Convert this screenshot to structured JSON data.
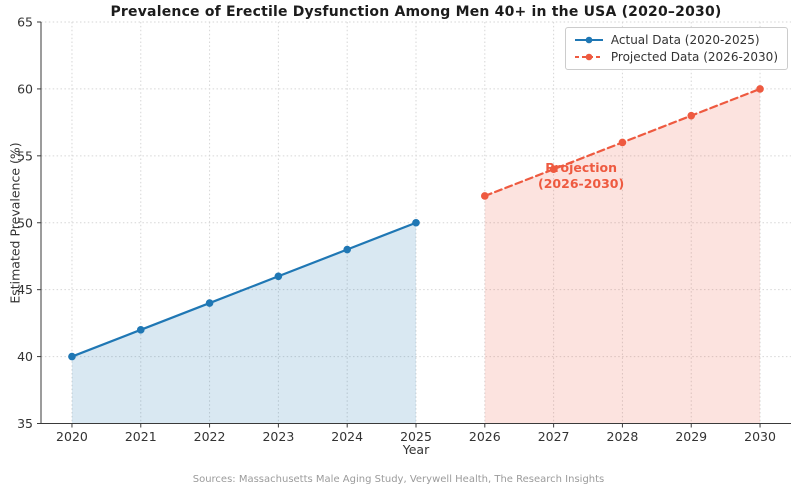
{
  "title": "Prevalence of Erectile Dysfunction Among Men 40+ in the USA (2020–2030)",
  "footer": "Sources: Massachusetts Male Aging Study, Verywell Health, The Research Insights",
  "chart_data": {
    "type": "line",
    "title": "Prevalence of Erectile Dysfunction Among Men 40+ in the USA (2020–2030)",
    "xlabel": "Year",
    "ylabel": "Estimated Prevalence (%)",
    "xlim": [
      2019.55,
      2030.45
    ],
    "ylim": [
      35,
      65
    ],
    "xticks": [
      2020,
      2021,
      2022,
      2023,
      2024,
      2025,
      2026,
      2027,
      2028,
      2029,
      2030
    ],
    "yticks": [
      35,
      40,
      45,
      50,
      55,
      60,
      65
    ],
    "grid": true,
    "legend_position": "top-right",
    "series": [
      {
        "name": "Actual Data (2020-2025)",
        "x": [
          2020,
          2021,
          2022,
          2023,
          2024,
          2025
        ],
        "values": [
          40,
          42,
          44,
          46,
          48,
          50
        ],
        "color": "#1f77b4",
        "fill": "rgba(31,119,180,0.17)",
        "line_style": "solid",
        "marker": "circle"
      },
      {
        "name": "Projected Data (2026-2030)",
        "x": [
          2026,
          2027,
          2028,
          2029,
          2030
        ],
        "values": [
          52,
          54,
          56,
          58,
          60
        ],
        "color": "#ee5a40",
        "fill": "rgba(238,90,64,0.17)",
        "line_style": "dashed",
        "marker": "circle"
      }
    ],
    "annotation": {
      "line1": "Projection",
      "line2": "(2026-2030)",
      "x": 2027.4,
      "y": 53.5,
      "color": "#ee5a40"
    }
  }
}
